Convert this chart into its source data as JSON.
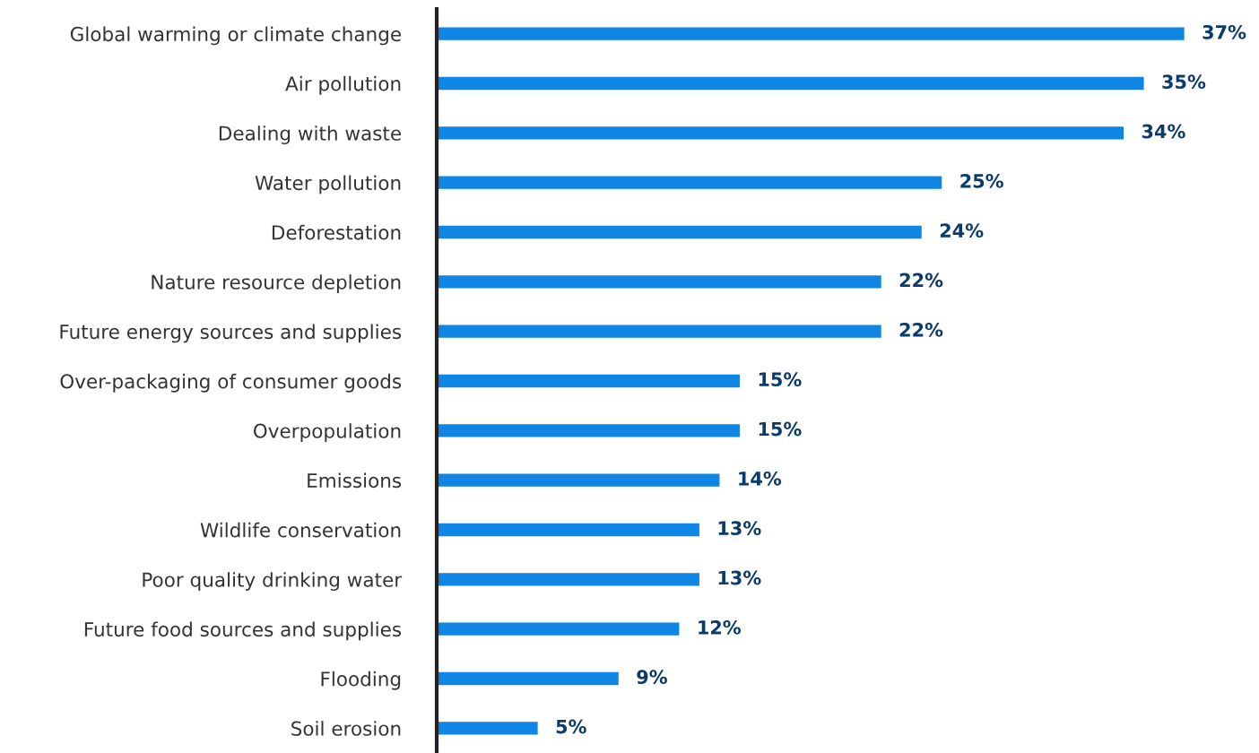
{
  "chart_data": {
    "type": "bar",
    "orientation": "horizontal",
    "categories": [
      "Global warming or climate change",
      "Air pollution",
      "Dealing with waste",
      "Water pollution",
      "Deforestation",
      "Nature resource depletion",
      "Future energy sources and supplies",
      "Over-packaging of consumer goods",
      "Overpopulation",
      "Emissions",
      "Wildlife conservation",
      "Poor quality drinking water",
      "Future food sources and supplies",
      "Flooding",
      "Soil erosion"
    ],
    "values": [
      37,
      35,
      34,
      25,
      24,
      22,
      22,
      15,
      15,
      14,
      13,
      13,
      12,
      9,
      5
    ],
    "value_labels": [
      "37%",
      "35%",
      "34%",
      "25%",
      "24%",
      "22%",
      "22%",
      "15%",
      "15%",
      "14%",
      "13%",
      "13%",
      "12%",
      "9%",
      "5%"
    ],
    "color": "#0f86e3",
    "tick_labels": "y",
    "grid": false,
    "legend": false
  }
}
